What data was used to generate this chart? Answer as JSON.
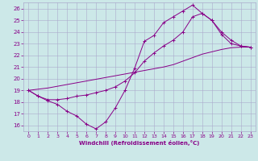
{
  "xlabel": "Windchill (Refroidissement éolien,°C)",
  "background_color": "#cce8e8",
  "grid_color": "#aaaacc",
  "line_color": "#880088",
  "xlim": [
    -0.5,
    23.5
  ],
  "ylim": [
    15.5,
    26.5
  ],
  "yticks": [
    16,
    17,
    18,
    19,
    20,
    21,
    22,
    23,
    24,
    25,
    26
  ],
  "xticks": [
    0,
    1,
    2,
    3,
    4,
    5,
    6,
    7,
    8,
    9,
    10,
    11,
    12,
    13,
    14,
    15,
    16,
    17,
    18,
    19,
    20,
    21,
    22,
    23
  ],
  "series1_x": [
    0,
    1,
    2,
    3,
    4,
    5,
    6,
    7,
    8,
    9,
    10,
    11,
    12,
    13,
    14,
    15,
    16,
    17,
    18,
    19,
    20,
    21,
    22,
    23
  ],
  "series1_y": [
    19.0,
    18.5,
    18.1,
    17.8,
    17.2,
    16.8,
    16.1,
    15.7,
    16.3,
    17.5,
    19.0,
    20.9,
    23.2,
    23.7,
    24.8,
    25.3,
    25.8,
    26.3,
    25.6,
    25.0,
    23.8,
    23.0,
    22.8,
    22.7
  ],
  "series2_x": [
    0,
    1,
    2,
    3,
    4,
    5,
    6,
    7,
    8,
    9,
    10,
    11,
    12,
    13,
    14,
    15,
    16,
    17,
    18,
    19,
    20,
    21,
    22,
    23
  ],
  "series2_y": [
    19.0,
    18.5,
    18.2,
    18.2,
    18.3,
    18.5,
    18.6,
    18.8,
    19.0,
    19.3,
    19.8,
    20.5,
    21.5,
    22.2,
    22.8,
    23.3,
    24.0,
    25.3,
    25.6,
    25.0,
    24.0,
    23.3,
    22.8,
    22.7
  ],
  "series3_x": [
    0,
    1,
    2,
    3,
    4,
    5,
    6,
    7,
    8,
    9,
    10,
    11,
    12,
    13,
    14,
    15,
    16,
    17,
    18,
    19,
    20,
    21,
    22,
    23
  ],
  "series3_y": [
    19.0,
    19.1,
    19.2,
    19.35,
    19.5,
    19.65,
    19.8,
    19.95,
    20.1,
    20.25,
    20.4,
    20.55,
    20.7,
    20.85,
    21.0,
    21.2,
    21.5,
    21.8,
    22.1,
    22.3,
    22.5,
    22.65,
    22.7,
    22.7
  ]
}
